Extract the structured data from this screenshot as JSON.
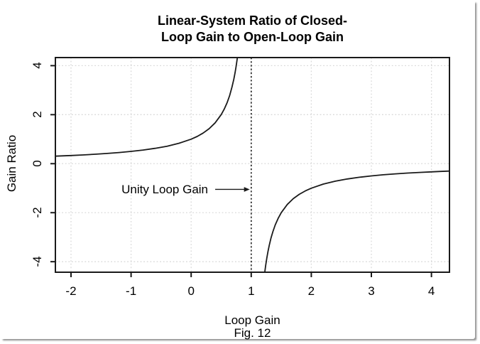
{
  "figure": {
    "title_line1": "Linear-System Ratio of Closed-",
    "title_line2": "Loop Gain to Open-Loop Gain",
    "caption": "Fig. 12"
  },
  "colors": {
    "background": "#ffffff",
    "line": "#1a1a1a",
    "grid": "#d9d9d9",
    "text": "#000000",
    "frame_shadow": "#8f8f8f"
  },
  "chart_data": {
    "type": "line",
    "title": "Linear-System Ratio of Closed-Loop Gain to Open-Loop Gain",
    "xlabel": "Loop Gain",
    "ylabel": "Gain Ratio",
    "caption": "Fig. 12",
    "xlim": [
      -2.26,
      4.3
    ],
    "ylim": [
      -4.43,
      4.33
    ],
    "x_ticks": [
      -2,
      -1,
      0,
      1,
      2,
      3,
      4
    ],
    "y_ticks": [
      -4,
      -2,
      0,
      2,
      4
    ],
    "grid": true,
    "grid_style": "dotted",
    "function": "gain_ratio = 1 / (1 - loop_gain)",
    "reference_line": {
      "x": 1,
      "style": "dotted",
      "meaning": "Unity Loop Gain asymptote"
    },
    "annotation": {
      "text": "Unity Loop Gain",
      "y": -1.05,
      "text_right_x": 0.36,
      "arrow_from_x": 0.4,
      "arrow_to_x": 0.975
    },
    "series": [
      {
        "name": "left-branch",
        "points": [
          [
            -2.26,
            0.3067
          ],
          [
            -2.0,
            0.3333
          ],
          [
            -1.8,
            0.3571
          ],
          [
            -1.6,
            0.3846
          ],
          [
            -1.4,
            0.4167
          ],
          [
            -1.2,
            0.4545
          ],
          [
            -1.0,
            0.5
          ],
          [
            -0.8,
            0.5556
          ],
          [
            -0.6,
            0.625
          ],
          [
            -0.4,
            0.7143
          ],
          [
            -0.2,
            0.8333
          ],
          [
            0.0,
            1.0
          ],
          [
            0.1,
            1.1111
          ],
          [
            0.2,
            1.25
          ],
          [
            0.3,
            1.4286
          ],
          [
            0.4,
            1.6667
          ],
          [
            0.5,
            2.0
          ],
          [
            0.55,
            2.2222
          ],
          [
            0.6,
            2.5
          ],
          [
            0.64,
            2.7778
          ],
          [
            0.68,
            3.125
          ],
          [
            0.71,
            3.4483
          ],
          [
            0.73,
            3.7037
          ],
          [
            0.75,
            4.0
          ],
          [
            0.769,
            4.33
          ]
        ]
      },
      {
        "name": "right-branch",
        "points": [
          [
            1.226,
            -4.43
          ],
          [
            1.24,
            -4.1667
          ],
          [
            1.26,
            -3.8462
          ],
          [
            1.28,
            -3.5714
          ],
          [
            1.3,
            -3.3333
          ],
          [
            1.33,
            -3.0303
          ],
          [
            1.36,
            -2.7778
          ],
          [
            1.4,
            -2.5
          ],
          [
            1.45,
            -2.2222
          ],
          [
            1.5,
            -2.0
          ],
          [
            1.6,
            -1.6667
          ],
          [
            1.7,
            -1.4286
          ],
          [
            1.8,
            -1.25
          ],
          [
            1.9,
            -1.1111
          ],
          [
            2.0,
            -1.0
          ],
          [
            2.2,
            -0.8333
          ],
          [
            2.4,
            -0.7143
          ],
          [
            2.6,
            -0.625
          ],
          [
            2.8,
            -0.5556
          ],
          [
            3.0,
            -0.5
          ],
          [
            3.2,
            -0.4545
          ],
          [
            3.4,
            -0.4167
          ],
          [
            3.6,
            -0.3846
          ],
          [
            3.8,
            -0.3571
          ],
          [
            4.0,
            -0.3333
          ],
          [
            4.15,
            -0.3175
          ],
          [
            4.3,
            -0.303
          ]
        ]
      }
    ]
  }
}
